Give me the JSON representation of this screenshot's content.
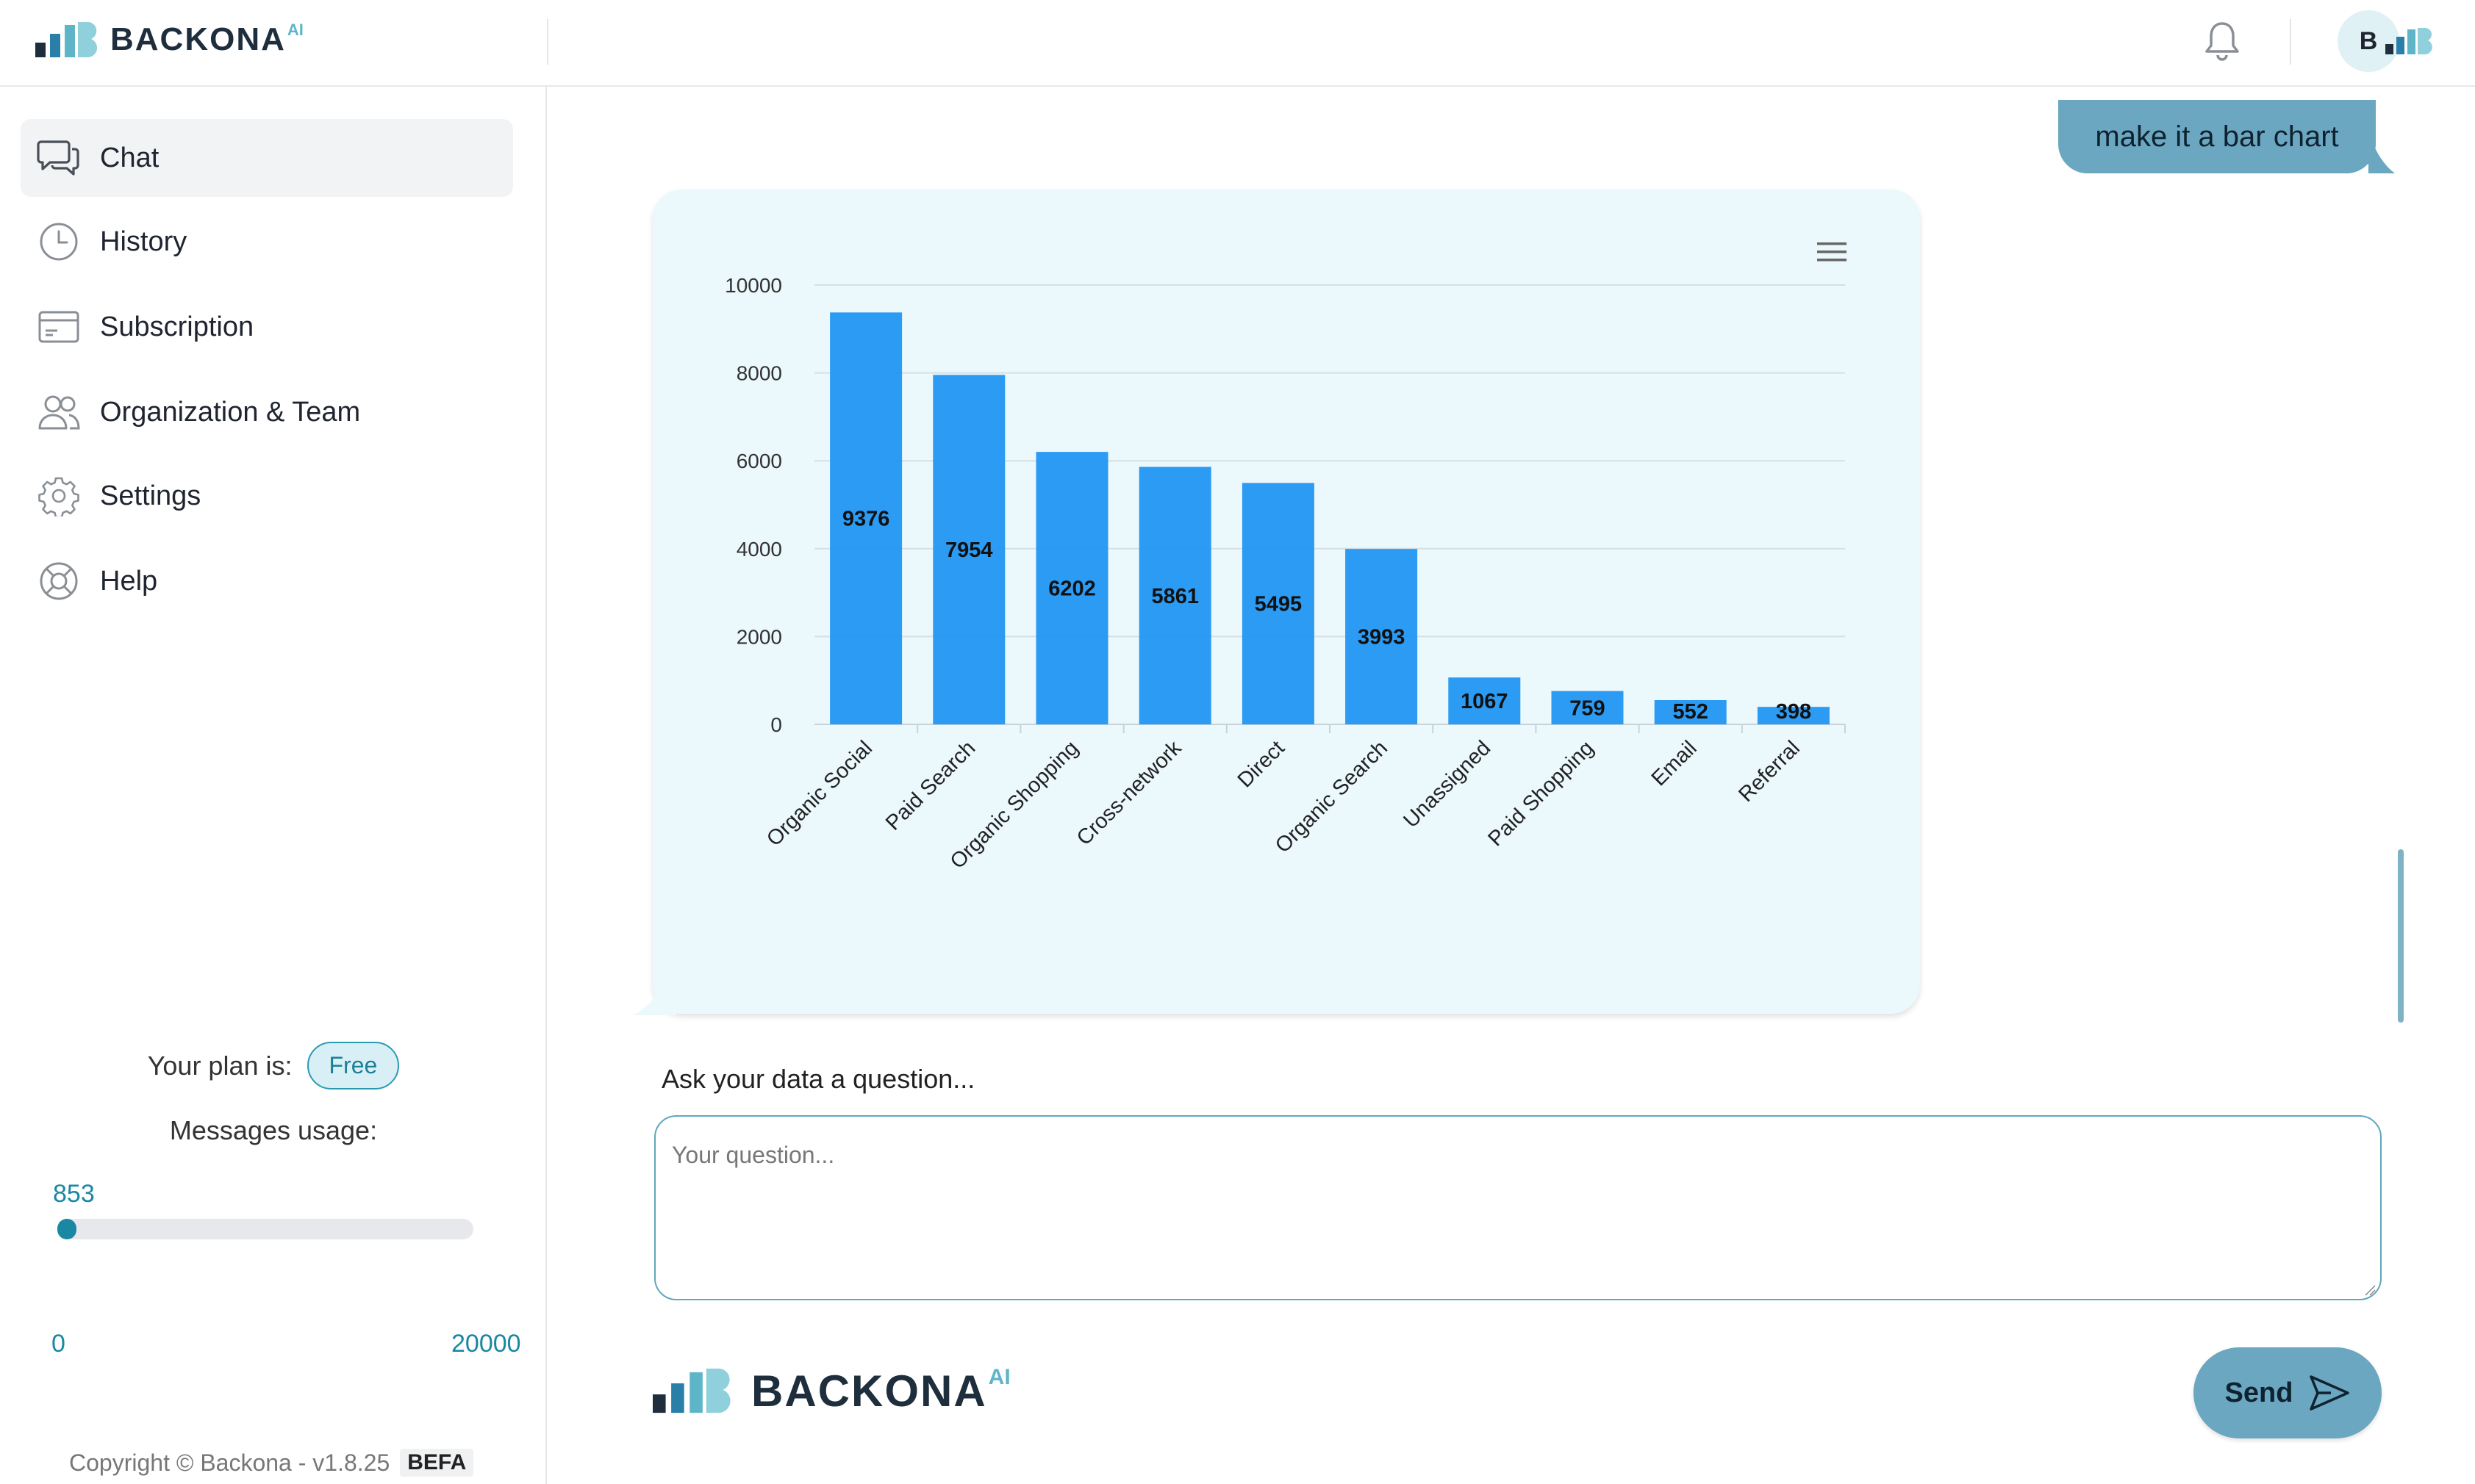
{
  "app": {
    "brand": "BACKONA",
    "brand_sup": "AI",
    "avatar_initial": "B"
  },
  "sidebar": {
    "items": [
      {
        "label": "Chat",
        "icon": "chat-bubbles-icon"
      },
      {
        "label": "History",
        "icon": "clock-icon"
      },
      {
        "label": "Subscription",
        "icon": "credit-card-icon"
      },
      {
        "label": "Organization & Team",
        "icon": "users-icon"
      },
      {
        "label": "Settings",
        "icon": "gear-icon"
      },
      {
        "label": "Help",
        "icon": "lifebuoy-icon"
      }
    ],
    "plan_label": "Your plan is:",
    "plan_value": "Free",
    "usage_label": "Messages usage:",
    "usage_current": "853",
    "usage_min": "0",
    "usage_max": "20000",
    "usage_fraction": 0.04265,
    "copyright": "Copyright © Backona - v1.8.25",
    "copyright_tag": "BEFA"
  },
  "chat": {
    "user_message": "make it a bar chart",
    "ask_label": "Ask your data a question...",
    "input_placeholder": "Your question...",
    "input_value": "",
    "send_label": "Send"
  },
  "colors": {
    "accent": "#1a87a3",
    "bubble": "#6ba7c0",
    "bar": "#2196f3",
    "card_bg": "#ebf8fc"
  },
  "chart_data": {
    "type": "bar",
    "categories": [
      "Organic Social",
      "Paid Search",
      "Organic Shopping",
      "Cross-network",
      "Direct",
      "Organic Search",
      "Unassigned",
      "Paid Shopping",
      "Email",
      "Referral"
    ],
    "values": [
      9376,
      7954,
      6202,
      5861,
      5495,
      3993,
      1067,
      759,
      552,
      398
    ],
    "ylim": [
      0,
      10000
    ],
    "yticks": [
      0,
      2000,
      4000,
      6000,
      8000,
      10000
    ],
    "grid": true,
    "data_labels": true,
    "title": "",
    "xlabel": "",
    "ylabel": ""
  }
}
